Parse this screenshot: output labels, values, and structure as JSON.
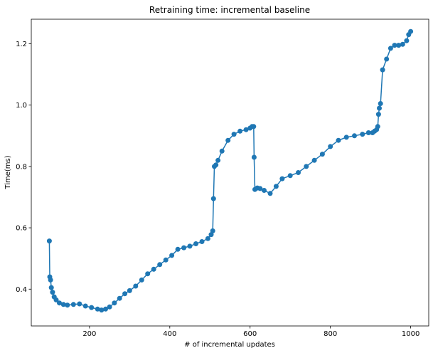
{
  "chart_data": {
    "type": "line",
    "title": "Retraining time: incremental baseline",
    "xlabel": "# of incremental updates",
    "ylabel": "Time(ms)",
    "xlim": [
      55,
      1045
    ],
    "ylim": [
      0.28,
      1.28
    ],
    "xticks": [
      200,
      400,
      600,
      800,
      1000
    ],
    "yticks": [
      0.4,
      0.6,
      0.8,
      1.0,
      1.2
    ],
    "xtick_labels": [
      "200",
      "400",
      "600",
      "800",
      "1000"
    ],
    "ytick_labels": [
      "0.4",
      "0.6",
      "0.8",
      "1.0",
      "1.2"
    ],
    "grid": false,
    "marker": "circle",
    "color": "#1f77b4",
    "series": [
      {
        "x": [
          100,
          101,
          103,
          105,
          108,
          112,
          117,
          125,
          135,
          145,
          160,
          175,
          190,
          205,
          220,
          230,
          240,
          250,
          262,
          275,
          288,
          300,
          315,
          330,
          345,
          360,
          375,
          390,
          405,
          420,
          435,
          450,
          465,
          480,
          495,
          503,
          507,
          509,
          511,
          515,
          520,
          530,
          545,
          560,
          575,
          590,
          600,
          605,
          609,
          610,
          612,
          618,
          625,
          635,
          650,
          665,
          680,
          700,
          720,
          740,
          760,
          780,
          800,
          820,
          840,
          860,
          880,
          895,
          905,
          910,
          915,
          918,
          920,
          922,
          925,
          930,
          940,
          950,
          960,
          970,
          980,
          990,
          995,
          1000
        ],
        "y": [
          0.557,
          0.44,
          0.43,
          0.405,
          0.39,
          0.375,
          0.365,
          0.355,
          0.35,
          0.348,
          0.35,
          0.352,
          0.345,
          0.34,
          0.335,
          0.332,
          0.335,
          0.342,
          0.355,
          0.37,
          0.385,
          0.395,
          0.41,
          0.43,
          0.45,
          0.465,
          0.48,
          0.495,
          0.51,
          0.53,
          0.535,
          0.54,
          0.548,
          0.555,
          0.565,
          0.578,
          0.59,
          0.695,
          0.8,
          0.805,
          0.82,
          0.85,
          0.885,
          0.905,
          0.915,
          0.92,
          0.925,
          0.93,
          0.93,
          0.83,
          0.725,
          0.73,
          0.728,
          0.722,
          0.712,
          0.735,
          0.76,
          0.77,
          0.78,
          0.8,
          0.82,
          0.84,
          0.865,
          0.885,
          0.895,
          0.9,
          0.905,
          0.91,
          0.91,
          0.915,
          0.92,
          0.93,
          0.97,
          0.99,
          1.005,
          1.115,
          1.15,
          1.185,
          1.195,
          1.195,
          1.198,
          1.21,
          1.23,
          1.24
        ]
      }
    ]
  }
}
